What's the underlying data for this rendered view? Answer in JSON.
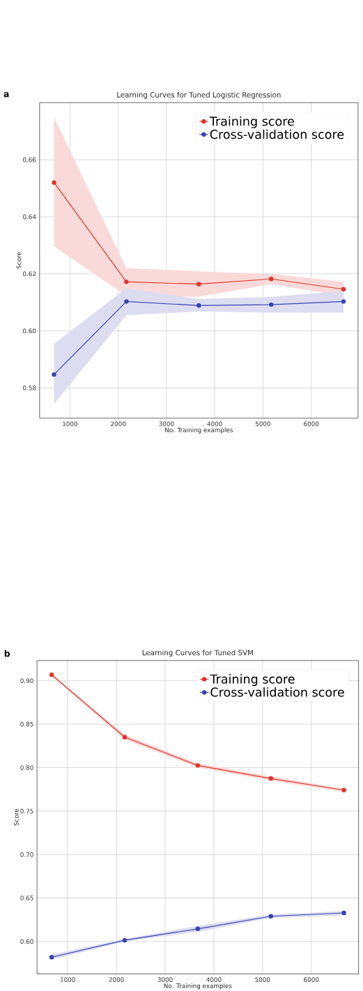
{
  "chart_data": [
    {
      "type": "line",
      "title": "Learning Curves for Tuned Logistic Regression",
      "xlabel": "No. Training examples",
      "ylabel": "Score",
      "annotations": [
        "a"
      ],
      "x": [
        670,
        2170,
        3670,
        5170,
        6670
      ],
      "series": [
        {
          "name": "Training score",
          "color": "#e3322b",
          "values": [
            0.652,
            0.6172,
            0.6164,
            0.6182,
            0.6146
          ],
          "lower": [
            0.6296,
            0.6122,
            0.612,
            0.6164,
            0.6122
          ],
          "upper": [
            0.6749,
            0.622,
            0.6209,
            0.62,
            0.6172
          ]
        },
        {
          "name": "Cross-validation score",
          "color": "#3a42b0",
          "values": [
            0.5847,
            0.6103,
            0.6089,
            0.6092,
            0.6103
          ],
          "lower": [
            0.5744,
            0.6055,
            0.6068,
            0.6064,
            0.6064
          ],
          "upper": [
            0.5954,
            0.615,
            0.6112,
            0.6119,
            0.614
          ]
        }
      ],
      "xlim": [
        370,
        6970
      ],
      "ylim": [
        0.5694,
        0.68
      ],
      "xticks": [
        1000,
        2000,
        3000,
        4000,
        5000,
        6000
      ],
      "yticks": [
        0.58,
        {
          "value": 0.6,
          "label": "0.60"
        },
        0.62,
        0.64,
        0.66
      ],
      "grid": true,
      "legend": "top right",
      "marker": "circle"
    },
    {
      "type": "line",
      "title": "Learning Curves for Tuned SVM",
      "xlabel": "No. Training examples",
      "ylabel": "Score",
      "annotations": [
        "b"
      ],
      "x": [
        670,
        2170,
        3670,
        5170,
        6670
      ],
      "series": [
        {
          "name": "Training score",
          "color": "#e3322b",
          "values": [
            0.9068,
            0.8351,
            0.8025,
            0.7875,
            0.7741
          ],
          "lower": [
            0.9055,
            0.832,
            0.8,
            0.785,
            0.772
          ],
          "upper": [
            0.908,
            0.838,
            0.805,
            0.79,
            0.776
          ]
        },
        {
          "name": "Cross-validation score",
          "color": "#3a42b0",
          "values": [
            0.5819,
            0.6014,
            0.6145,
            0.629,
            0.6328
          ],
          "lower": [
            0.579,
            0.6,
            0.611,
            0.627,
            0.63
          ],
          "upper": [
            0.585,
            0.603,
            0.618,
            0.631,
            0.635
          ]
        }
      ],
      "xlim": [
        370,
        6970
      ],
      "ylim": [
        0.5626,
        0.9232
      ],
      "xticks": [
        1000,
        2000,
        3000,
        4000,
        5000,
        6000
      ],
      "yticks": [
        {
          "value": 0.6,
          "label": "0.60"
        },
        0.65,
        {
          "value": 0.7,
          "label": "0.70"
        },
        0.75,
        {
          "value": 0.8,
          "label": "0.80"
        },
        0.85,
        {
          "value": 0.9,
          "label": "0.90"
        }
      ],
      "grid": true,
      "legend": "top right",
      "marker": "circle"
    }
  ]
}
